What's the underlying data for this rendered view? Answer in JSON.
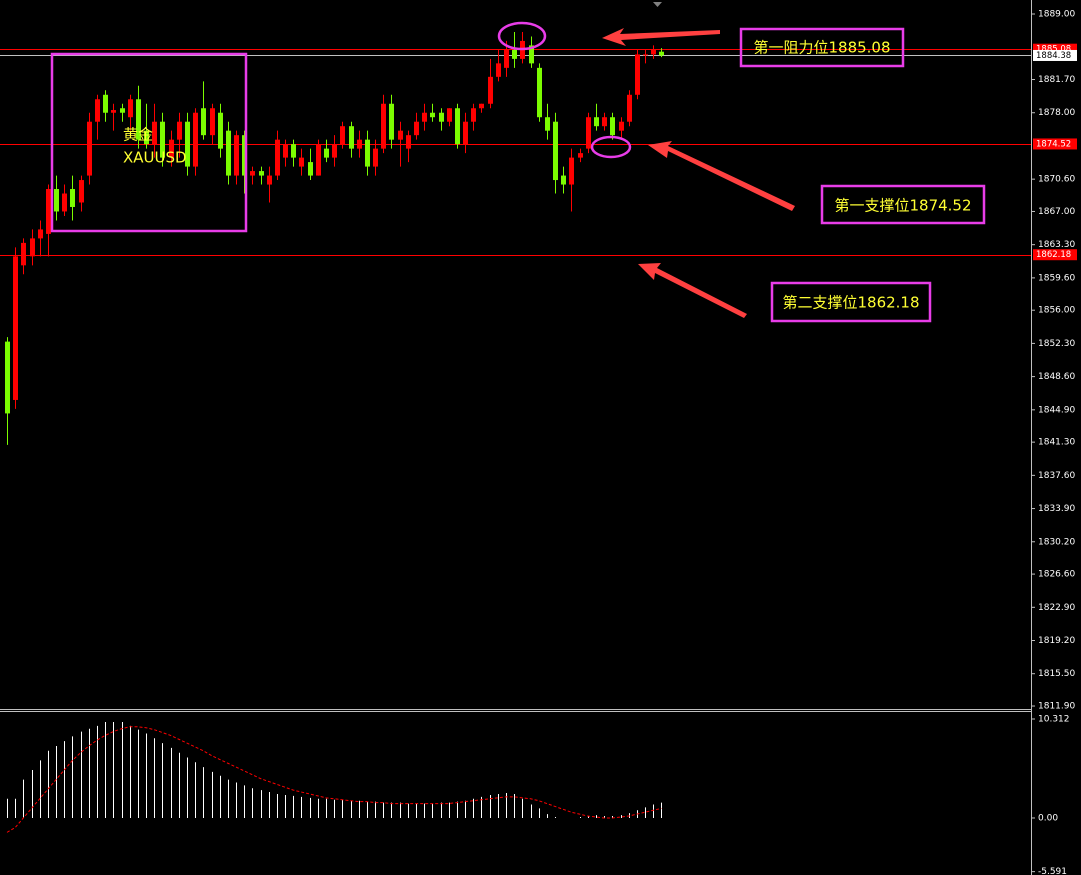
{
  "chart_data": [
    {
      "type": "candlestick",
      "symbol": [
        "黄金",
        "XAUUSD"
      ],
      "annotations": [
        "第一阻力位1885.08",
        "第一支撑位1874.52",
        "第二支撑位1862.18"
      ],
      "up_color": "#ff0000",
      "down_color": "#7cfc00",
      "open": [
        1852.5,
        1846,
        1861,
        1862,
        1864,
        1864.5,
        1869.5,
        1867,
        1869.5,
        1868,
        1871,
        1877,
        1880,
        1878,
        1878.5,
        1877.5,
        1879.5,
        1876,
        1874.5,
        1877,
        1873,
        1875,
        1877,
        1872,
        1878.5,
        1875.5,
        1878,
        1876,
        1871,
        1875.5,
        1871,
        1871.5,
        1870,
        1871,
        1873,
        1874.5,
        1872,
        1872.5,
        1871,
        1874,
        1873,
        1874.5,
        1876.5,
        1874,
        1875,
        1872,
        1874,
        1879,
        1875,
        1874,
        1875.5,
        1877,
        1878,
        1878,
        1877,
        1878.5,
        1874.5,
        1877,
        1878.5,
        1879,
        1882,
        1883,
        1885,
        1884,
        1885.5,
        1883,
        1877.5,
        1877,
        1871,
        1870,
        1873,
        1874,
        1877.5,
        1876.5,
        1877.5,
        1876,
        1877,
        1880,
        1884.5,
        1884.5,
        1884.8
      ],
      "high": [
        1853,
        1863,
        1864,
        1865,
        1866,
        1870,
        1871,
        1870,
        1871,
        1871,
        1878,
        1880,
        1880.5,
        1879,
        1879,
        1880,
        1881,
        1879,
        1879,
        1878,
        1876,
        1878,
        1878,
        1878.5,
        1881.5,
        1879,
        1879,
        1877,
        1876,
        1876,
        1872,
        1872,
        1872,
        1876,
        1875,
        1875,
        1874,
        1874,
        1875,
        1875,
        1875.5,
        1877,
        1877,
        1876,
        1876,
        1875,
        1880,
        1880,
        1877,
        1876,
        1878,
        1879,
        1879,
        1878.5,
        1878.5,
        1879,
        1878,
        1879,
        1879,
        1884,
        1885,
        1886,
        1887,
        1887,
        1886.5,
        1883.5,
        1879,
        1878,
        1872,
        1874,
        1874,
        1878,
        1879,
        1878,
        1878,
        1877.5,
        1880.5,
        1885,
        1885,
        1885.5,
        1885.2
      ],
      "low": [
        1841,
        1845,
        1860,
        1861,
        1862,
        1862,
        1866,
        1866.5,
        1866,
        1867,
        1870,
        1875,
        1877,
        1876,
        1877,
        1876,
        1874,
        1874,
        1873,
        1872,
        1872,
        1873,
        1871,
        1871,
        1875,
        1874.5,
        1873,
        1870,
        1870,
        1869,
        1870,
        1870,
        1868,
        1870.5,
        1872,
        1872,
        1871,
        1870.5,
        1871,
        1872.5,
        1872,
        1874,
        1873,
        1873,
        1871,
        1871,
        1873.5,
        1874,
        1872,
        1872.5,
        1875,
        1876,
        1877,
        1876,
        1876.5,
        1874,
        1873.5,
        1876,
        1878,
        1878.5,
        1881.5,
        1882,
        1883,
        1883.5,
        1883,
        1877,
        1875,
        1869,
        1869,
        1867,
        1872.5,
        1873.5,
        1876,
        1876,
        1875,
        1875,
        1876.5,
        1879.5,
        1883.5,
        1884,
        1884.2
      ],
      "close": [
        1844.5,
        1862,
        1863.5,
        1864,
        1865,
        1869.5,
        1867,
        1869,
        1867.5,
        1870.5,
        1877,
        1879.5,
        1878,
        1878.3,
        1878,
        1879.5,
        1875,
        1874.5,
        1877,
        1873,
        1875,
        1877,
        1872,
        1878,
        1875.5,
        1878.5,
        1874,
        1871,
        1875.5,
        1871,
        1871.5,
        1871,
        1871,
        1875,
        1874.5,
        1873,
        1873,
        1871,
        1874.5,
        1873,
        1874.5,
        1876.5,
        1874,
        1875,
        1872,
        1874,
        1879,
        1875,
        1876,
        1875.5,
        1877,
        1878,
        1877.5,
        1877,
        1878.5,
        1874.5,
        1877,
        1878.5,
        1879,
        1882,
        1883.5,
        1885,
        1884,
        1886,
        1883.5,
        1877.5,
        1876,
        1870.5,
        1870,
        1873,
        1873.5,
        1877.5,
        1876.5,
        1877.5,
        1875.5,
        1877,
        1880,
        1884.5,
        1884.5,
        1885,
        1884.38
      ],
      "levels": [
        {
          "value": 1885.08,
          "color": "#ff0000"
        },
        {
          "value": 1874.52,
          "color": "#ff0000"
        },
        {
          "value": 1862.18,
          "color": "#ff0000"
        },
        {
          "value": 1884.38,
          "color": "#c0c0c0"
        }
      ],
      "ylim": [
        1811.68,
        1890.56
      ],
      "yticks": [
        {
          "value": 1889,
          "label": "1889.00"
        },
        {
          "value": 1881.7,
          "label": "1881.70"
        },
        {
          "value": 1878,
          "label": "1878.00"
        },
        {
          "value": 1870.6,
          "label": "1870.60"
        },
        {
          "value": 1867,
          "label": "1867.00"
        },
        {
          "value": 1863.3,
          "label": "1863.30"
        },
        {
          "value": 1859.6,
          "label": "1859.60"
        },
        {
          "value": 1856,
          "label": "1856.00"
        },
        {
          "value": 1852.3,
          "label": "1852.30"
        },
        {
          "value": 1848.6,
          "label": "1848.60"
        },
        {
          "value": 1844.9,
          "label": "1844.90"
        },
        {
          "value": 1841.3,
          "label": "1841.30"
        },
        {
          "value": 1837.6,
          "label": "1837.60"
        },
        {
          "value": 1833.9,
          "label": "1833.90"
        },
        {
          "value": 1830.2,
          "label": "1830.20"
        },
        {
          "value": 1826.6,
          "label": "1826.60"
        },
        {
          "value": 1822.9,
          "label": "1822.90"
        },
        {
          "value": 1819.2,
          "label": "1819.20"
        },
        {
          "value": 1815.5,
          "label": "1815.50"
        },
        {
          "value": 1811.9,
          "label": "1811.90"
        }
      ]
    },
    {
      "type": "macd",
      "series": [
        {
          "type": "histogram",
          "color": "#ffffff",
          "values": [
            2,
            2,
            4,
            5,
            6,
            7,
            7.5,
            8,
            8.5,
            9,
            9.3,
            9.6,
            10,
            10,
            10,
            9.6,
            9.2,
            8.8,
            8.3,
            7.8,
            7.3,
            6.8,
            6.3,
            5.8,
            5.3,
            4.8,
            4.4,
            4.0,
            3.7,
            3.4,
            3.1,
            2.9,
            2.7,
            2.5,
            2.4,
            2.3,
            2.2,
            2.1,
            2.0,
            2.0,
            1.9,
            1.9,
            1.8,
            1.8,
            1.7,
            1.7,
            1.6,
            1.6,
            1.6,
            1.5,
            1.5,
            1.5,
            1.5,
            1.6,
            1.6,
            1.7,
            1.8,
            2.0,
            2.2,
            2.4,
            2.5,
            2.6,
            2.5,
            2.0,
            1.4,
            1.0,
            0.4,
            0.1,
            0,
            0,
            0.1,
            0.2,
            0.3,
            0.2,
            0.2,
            0.3,
            0.5,
            0.8,
            1.1,
            1.4,
            1.6
          ]
        },
        {
          "type": "line",
          "color": "#ff0000",
          "dashed": true,
          "values": [
            -1.5,
            -1,
            0,
            1,
            2,
            3,
            4,
            5,
            6,
            6.8,
            7.5,
            8.1,
            8.6,
            9,
            9.3,
            9.5,
            9.5,
            9.4,
            9.2,
            8.9,
            8.6,
            8.2,
            7.8,
            7.4,
            7,
            6.5,
            6.1,
            5.7,
            5.3,
            4.9,
            4.5,
            4.1,
            3.8,
            3.5,
            3.2,
            2.9,
            2.7,
            2.5,
            2.3,
            2.1,
            2.0,
            1.9,
            1.8,
            1.7,
            1.7,
            1.6,
            1.6,
            1.5,
            1.5,
            1.5,
            1.5,
            1.5,
            1.5,
            1.5,
            1.5,
            1.6,
            1.7,
            1.8,
            1.9,
            2.0,
            2.1,
            2.2,
            2.2,
            2.1,
            2.0,
            1.8,
            1.5,
            1.2,
            0.9,
            0.6,
            0.4,
            0.2,
            0.1,
            0,
            0,
            0.1,
            0.2,
            0.4,
            0.6,
            0.8,
            1.0
          ]
        }
      ],
      "ylim": [
        -5.94,
        11.04
      ],
      "yticks": [
        10.312,
        {
          "value": 0,
          "label": "0.00"
        },
        -5.591
      ]
    }
  ]
}
